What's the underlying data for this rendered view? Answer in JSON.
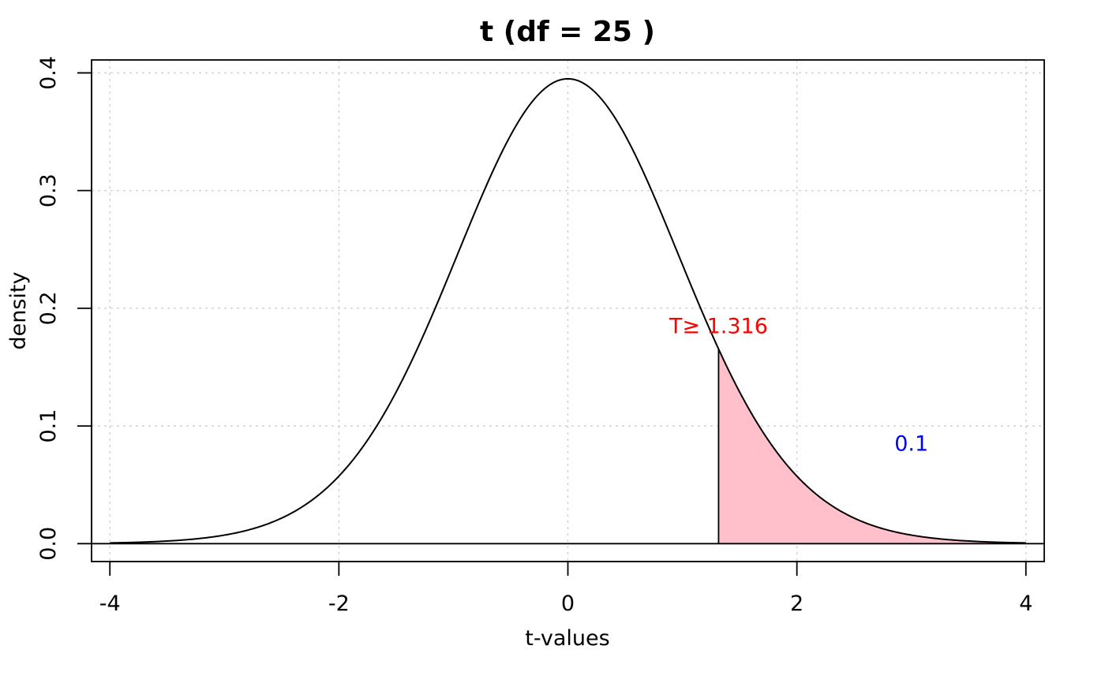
{
  "chart_data": {
    "type": "area",
    "title": "t (df = 25 )",
    "xlabel": "t-values",
    "ylabel": "density",
    "df": 25,
    "xlim": [
      -4.16,
      4.16
    ],
    "ylim": [
      -0.0152,
      0.411
    ],
    "x_ticks": [
      -4,
      -2,
      0,
      2,
      4
    ],
    "x_tick_labels": [
      "-4",
      "-2",
      "0",
      "2",
      "4"
    ],
    "y_ticks": [
      0,
      0.1,
      0.2,
      0.3,
      0.4
    ],
    "y_tick_labels": [
      "0.0",
      "0.1",
      "0.2",
      "0.3",
      "0.4"
    ],
    "grid": true,
    "curve_range": [
      -4,
      4
    ],
    "shaded_region": {
      "from": 1.316,
      "to": 4,
      "color": "#ffc0cb"
    },
    "annotations": [
      {
        "text": "T≥ 1.316",
        "x": 1.316,
        "y": 0.185,
        "color": "#ff0000"
      },
      {
        "text": "0.1",
        "x": 3,
        "y": 0.085,
        "color": "#0000ff"
      }
    ],
    "colors": {
      "curve": "#000000",
      "grid": "#d3d3d3"
    }
  }
}
